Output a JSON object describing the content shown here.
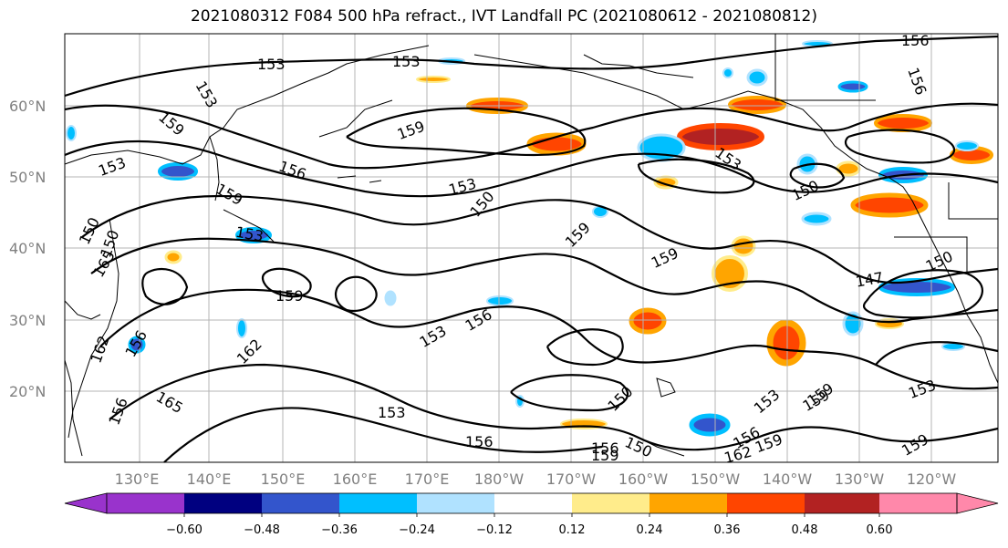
{
  "title": "2021080312 F084 500 hPa refract., IVT Landfall PC (2021080612 - 2021080812)",
  "lat_labels": [
    "60°N",
    "50°N",
    "40°N",
    "30°N",
    "20°N"
  ],
  "lon_labels": [
    "130°E",
    "140°E",
    "150°E",
    "160°E",
    "170°E",
    "180°W",
    "170°W",
    "160°W",
    "150°W",
    "140°W",
    "130°W",
    "120°W"
  ],
  "colorbar": {
    "colors": [
      "#9933cc",
      "#000080",
      "#3355cc",
      "#00bfff",
      "#b0e2ff",
      "#ffffff",
      "#ffec8b",
      "#ffa500",
      "#ff4500",
      "#b22222",
      "#ff88aa"
    ],
    "tick_labels": [
      "−0.60",
      "−0.48",
      "−0.36",
      "−0.24",
      "−0.12",
      "0.12",
      "0.24",
      "0.36",
      "0.48",
      "0.60"
    ]
  },
  "contour_labels": [
    {
      "text": "153"
    },
    {
      "text": "153"
    },
    {
      "text": "156"
    },
    {
      "text": "153"
    },
    {
      "text": "159"
    },
    {
      "text": "153"
    },
    {
      "text": "156"
    },
    {
      "text": "159"
    },
    {
      "text": "153"
    },
    {
      "text": "150"
    },
    {
      "text": "159"
    },
    {
      "text": "150"
    },
    {
      "text": "153"
    },
    {
      "text": "150"
    },
    {
      "text": "159"
    },
    {
      "text": "165"
    },
    {
      "text": "159"
    },
    {
      "text": "162"
    },
    {
      "text": "159"
    },
    {
      "text": "153"
    },
    {
      "text": "156"
    },
    {
      "text": "159"
    },
    {
      "text": "150"
    },
    {
      "text": "147"
    },
    {
      "text": "162"
    },
    {
      "text": "165"
    },
    {
      "text": "156"
    },
    {
      "text": "153"
    },
    {
      "text": "156"
    },
    {
      "text": "153"
    },
    {
      "text": "153"
    },
    {
      "text": "159"
    },
    {
      "text": "159"
    },
    {
      "text": "156"
    },
    {
      "text": "162"
    },
    {
      "text": "159"
    },
    {
      "text": "150"
    },
    {
      "text": "156"
    },
    {
      "text": "153"
    },
    {
      "text": "159"
    },
    {
      "text": "156"
    },
    {
      "text": "156"
    },
    {
      "text": "150"
    },
    {
      "text": "150"
    }
  ]
}
